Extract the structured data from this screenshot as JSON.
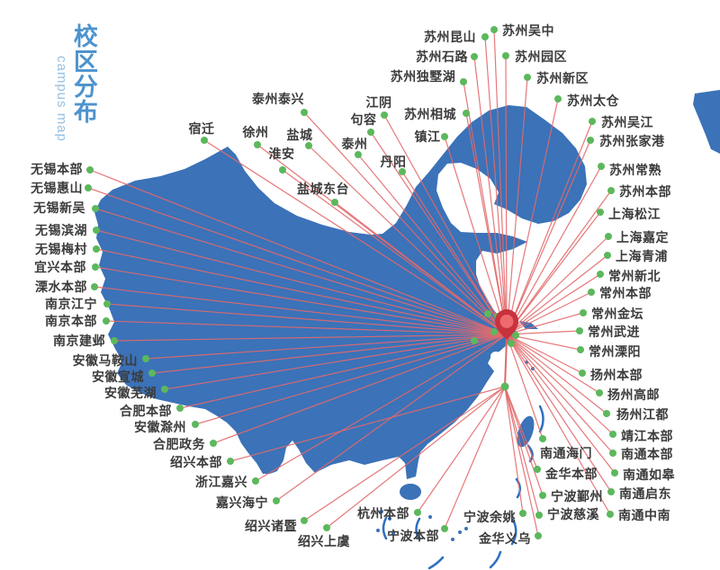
{
  "title": {
    "cn": "校区分布",
    "en": "campus map"
  },
  "colors": {
    "map_blue": "#3B72B8",
    "sea_dash_blue": "#2F6FC0",
    "line_red": "#E2696B",
    "dot_green": "#5CB85C",
    "pin_dark": "#C8323C",
    "pin_light": "#EF6A6D",
    "title_blue": "#4D93CE",
    "title_en_blue": "#97C0E0",
    "label_text": "#3B3B3B"
  },
  "hubs": {
    "main": [
      563,
      372
    ],
    "south": [
      561,
      430
    ]
  },
  "extra_dots": [
    [
      542,
      349
    ],
    [
      553,
      352
    ],
    [
      549,
      369
    ],
    [
      527,
      379
    ],
    [
      568,
      382
    ],
    [
      573,
      373
    ]
  ],
  "sites": [
    {
      "name": "宿迁",
      "dot": [
        227,
        156
      ],
      "label": [
        224,
        143
      ],
      "align": "middle",
      "hub": "main"
    },
    {
      "name": "徐州",
      "dot": [
        286,
        161
      ],
      "label": [
        284,
        147
      ],
      "align": "middle",
      "hub": "main"
    },
    {
      "name": "盐城",
      "dot": [
        343,
        162
      ],
      "label": [
        333,
        150
      ],
      "align": "middle",
      "hub": "main"
    },
    {
      "name": "淮安",
      "dot": [
        314,
        189
      ],
      "label": [
        313,
        171
      ],
      "align": "middle",
      "hub": "main"
    },
    {
      "name": "盐城东台",
      "dot": [
        372,
        225
      ],
      "label": [
        359,
        210
      ],
      "align": "middle",
      "hub": "main"
    },
    {
      "name": "泰州泰兴",
      "dot": [
        338,
        125
      ],
      "label": [
        309,
        110
      ],
      "align": "middle",
      "hub": "main"
    },
    {
      "name": "泰州",
      "dot": [
        398,
        172
      ],
      "label": [
        394,
        160
      ],
      "align": "middle",
      "hub": "main"
    },
    {
      "name": "江阴",
      "dot": [
        427,
        128
      ],
      "label": [
        421,
        114
      ],
      "align": "middle",
      "hub": "main"
    },
    {
      "name": "句容",
      "dot": [
        412,
        147
      ],
      "label": [
        404,
        133
      ],
      "align": "middle",
      "hub": "main"
    },
    {
      "name": "丹阳",
      "dot": [
        447,
        191
      ],
      "label": [
        437,
        180
      ],
      "align": "middle",
      "hub": "main"
    },
    {
      "name": "镇江",
      "dot": [
        494,
        152
      ],
      "label": [
        475,
        152
      ],
      "align": "middle",
      "hub": "main"
    },
    {
      "name": "苏州相城",
      "dot": [
        518,
        126
      ],
      "label": [
        478,
        127
      ],
      "align": "middle",
      "hub": "main"
    },
    {
      "name": "苏州独墅湖",
      "dot": [
        515,
        91
      ],
      "label": [
        470,
        85
      ],
      "align": "middle",
      "hub": "main"
    },
    {
      "name": "苏州石路",
      "dot": [
        527,
        63
      ],
      "label": [
        491,
        63
      ],
      "align": "middle",
      "hub": "main"
    },
    {
      "name": "苏州昆山",
      "dot": [
        539,
        41
      ],
      "label": [
        500,
        41
      ],
      "align": "middle",
      "hub": "main"
    },
    {
      "name": "苏州吴中",
      "dot": [
        549,
        33
      ],
      "label": [
        558,
        34
      ],
      "align": "start",
      "hub": "main"
    },
    {
      "name": "苏州园区",
      "dot": [
        562,
        62
      ],
      "label": [
        572,
        63
      ],
      "align": "start",
      "hub": "main"
    },
    {
      "name": "苏州新区",
      "dot": [
        586,
        86
      ],
      "label": [
        596,
        87
      ],
      "align": "start",
      "hub": "main"
    },
    {
      "name": "苏州太仓",
      "dot": [
        620,
        110
      ],
      "label": [
        630,
        112
      ],
      "align": "start",
      "hub": "main"
    },
    {
      "name": "苏州吴江",
      "dot": [
        658,
        135
      ],
      "label": [
        668,
        136
      ],
      "align": "start",
      "hub": "main"
    },
    {
      "name": "苏州张家港",
      "dot": [
        656,
        156
      ],
      "label": [
        666,
        157
      ],
      "align": "start",
      "hub": "main"
    },
    {
      "name": "苏州常熟",
      "dot": [
        668,
        185
      ],
      "label": [
        677,
        189
      ],
      "align": "start",
      "hub": "main"
    },
    {
      "name": "苏州本部",
      "dot": [
        679,
        212
      ],
      "label": [
        688,
        213
      ],
      "align": "start",
      "hub": "main"
    },
    {
      "name": "上海松江",
      "dot": [
        667,
        236
      ],
      "label": [
        676,
        238
      ],
      "align": "start",
      "hub": "main"
    },
    {
      "name": "上海嘉定",
      "dot": [
        676,
        263
      ],
      "label": [
        685,
        264
      ],
      "align": "start",
      "hub": "main"
    },
    {
      "name": "上海青浦",
      "dot": [
        675,
        284
      ],
      "label": [
        684,
        285
      ],
      "align": "start",
      "hub": "main"
    },
    {
      "name": "常州新北",
      "dot": [
        667,
        305
      ],
      "label": [
        676,
        307
      ],
      "align": "start",
      "hub": "main"
    },
    {
      "name": "常州本部",
      "dot": [
        657,
        325
      ],
      "label": [
        666,
        326
      ],
      "align": "start",
      "hub": "main"
    },
    {
      "name": "常州金坛",
      "dot": [
        648,
        348
      ],
      "label": [
        657,
        349
      ],
      "align": "start",
      "hub": "main"
    },
    {
      "name": "常州武进",
      "dot": [
        644,
        368
      ],
      "label": [
        653,
        369
      ],
      "align": "start",
      "hub": "main"
    },
    {
      "name": "常州溧阳",
      "dot": [
        645,
        389
      ],
      "label": [
        654,
        391
      ],
      "align": "start",
      "hub": "main"
    },
    {
      "name": "扬州本部",
      "dot": [
        647,
        415
      ],
      "label": [
        656,
        417
      ],
      "align": "start",
      "hub": "main"
    },
    {
      "name": "扬州高邮",
      "dot": [
        666,
        437
      ],
      "label": [
        675,
        439
      ],
      "align": "start",
      "hub": "main"
    },
    {
      "name": "扬州江都",
      "dot": [
        674,
        460
      ],
      "label": [
        685,
        461
      ],
      "align": "start",
      "hub": "main"
    },
    {
      "name": "靖江本部",
      "dot": [
        681,
        483
      ],
      "label": [
        690,
        485
      ],
      "align": "start",
      "hub": "main"
    },
    {
      "name": "南通本部",
      "dot": [
        681,
        504
      ],
      "label": [
        690,
        505
      ],
      "align": "start",
      "hub": "main"
    },
    {
      "name": "南通如皋",
      "dot": [
        683,
        526
      ],
      "label": [
        692,
        528
      ],
      "align": "start",
      "hub": "main"
    },
    {
      "name": "南通启东",
      "dot": [
        679,
        547
      ],
      "label": [
        688,
        549
      ],
      "align": "start",
      "hub": "main"
    },
    {
      "name": "南通中南",
      "dot": [
        678,
        572
      ],
      "label": [
        687,
        573
      ],
      "align": "start",
      "hub": "main"
    },
    {
      "name": "南通海门",
      "dot": [
        603,
        488
      ],
      "label": [
        600,
        504
      ],
      "align": "start",
      "hub": "main"
    },
    {
      "name": "金华本部",
      "dot": [
        597,
        522
      ],
      "label": [
        606,
        527
      ],
      "align": "start",
      "hub": "south"
    },
    {
      "name": "宁波鄞州",
      "dot": [
        603,
        551
      ],
      "label": [
        612,
        552
      ],
      "align": "start",
      "hub": "south"
    },
    {
      "name": "宁波慈溪",
      "dot": [
        599,
        573
      ],
      "label": [
        608,
        572
      ],
      "align": "start",
      "hub": "south"
    },
    {
      "name": "宁波余姚",
      "dot": [
        581,
        571
      ],
      "label": [
        573,
        575
      ],
      "align": "end",
      "hub": "south"
    },
    {
      "name": "金华义乌",
      "dot": [
        598,
        596
      ],
      "label": [
        590,
        599
      ],
      "align": "end",
      "hub": "south"
    },
    {
      "name": "宁波本部",
      "dot": [
        494,
        588
      ],
      "label": [
        488,
        596
      ],
      "align": "end",
      "hub": "south"
    },
    {
      "name": "杭州本部",
      "dot": [
        464,
        570
      ],
      "label": [
        455,
        571
      ],
      "align": "end",
      "hub": "south"
    },
    {
      "name": "无锡本部",
      "dot": [
        100,
        189
      ],
      "label": [
        92,
        188
      ],
      "align": "end",
      "hub": "main"
    },
    {
      "name": "无锡惠山",
      "dot": [
        98,
        209
      ],
      "label": [
        92,
        209
      ],
      "align": "end",
      "hub": "main"
    },
    {
      "name": "无锡新吴",
      "dot": [
        106,
        232
      ],
      "label": [
        95,
        231
      ],
      "align": "end",
      "hub": "main"
    },
    {
      "name": "无锡滨湖",
      "dot": [
        107,
        256
      ],
      "label": [
        97,
        256
      ],
      "align": "end",
      "hub": "main"
    },
    {
      "name": "无锡梅村",
      "dot": [
        107,
        277
      ],
      "label": [
        97,
        277
      ],
      "align": "end",
      "hub": "main"
    },
    {
      "name": "宜兴本部",
      "dot": [
        106,
        297
      ],
      "label": [
        96,
        297
      ],
      "align": "end",
      "hub": "main"
    },
    {
      "name": "溧水本部",
      "dot": [
        105,
        319
      ],
      "label": [
        97,
        319
      ],
      "align": "end",
      "hub": "main"
    },
    {
      "name": "南京江宁",
      "dot": [
        119,
        338
      ],
      "label": [
        108,
        338
      ],
      "align": "end",
      "hub": "main"
    },
    {
      "name": "南京本部",
      "dot": [
        118,
        357
      ],
      "label": [
        108,
        357
      ],
      "align": "end",
      "hub": "main"
    },
    {
      "name": "南京建邺",
      "dot": [
        127,
        379
      ],
      "label": [
        117,
        379
      ],
      "align": "end",
      "hub": "main"
    },
    {
      "name": "安徽马鞍山",
      "dot": [
        162,
        399
      ],
      "label": [
        153,
        401
      ],
      "align": "end",
      "hub": "main"
    },
    {
      "name": "安徽宣城",
      "dot": [
        169,
        415
      ],
      "label": [
        160,
        419
      ],
      "align": "end",
      "hub": "main"
    },
    {
      "name": "安徽芜湖",
      "dot": [
        183,
        433
      ],
      "label": [
        174,
        437
      ],
      "align": "end",
      "hub": "main"
    },
    {
      "name": "合肥本部",
      "dot": [
        200,
        454
      ],
      "label": [
        191,
        457
      ],
      "align": "end",
      "hub": "main"
    },
    {
      "name": "安徽滁州",
      "dot": [
        217,
        472
      ],
      "label": [
        207,
        475
      ],
      "align": "end",
      "hub": "main"
    },
    {
      "name": "合肥政务",
      "dot": [
        237,
        493
      ],
      "label": [
        228,
        494
      ],
      "align": "end",
      "hub": "main"
    },
    {
      "name": "绍兴本部",
      "dot": [
        256,
        513
      ],
      "label": [
        247,
        514
      ],
      "align": "end",
      "hub": "south"
    },
    {
      "name": "浙江嘉兴",
      "dot": [
        284,
        535
      ],
      "label": [
        275,
        536
      ],
      "align": "end",
      "hub": "main"
    },
    {
      "name": "嘉兴海宁",
      "dot": [
        307,
        557
      ],
      "label": [
        298,
        559
      ],
      "align": "end",
      "hub": "main"
    },
    {
      "name": "绍兴诸暨",
      "dot": [
        338,
        579
      ],
      "label": [
        330,
        585
      ],
      "align": "end",
      "hub": "south"
    },
    {
      "name": "绍兴上虞",
      "dot": [
        363,
        587
      ],
      "label": [
        360,
        602
      ],
      "align": "middle",
      "hub": "south"
    }
  ]
}
